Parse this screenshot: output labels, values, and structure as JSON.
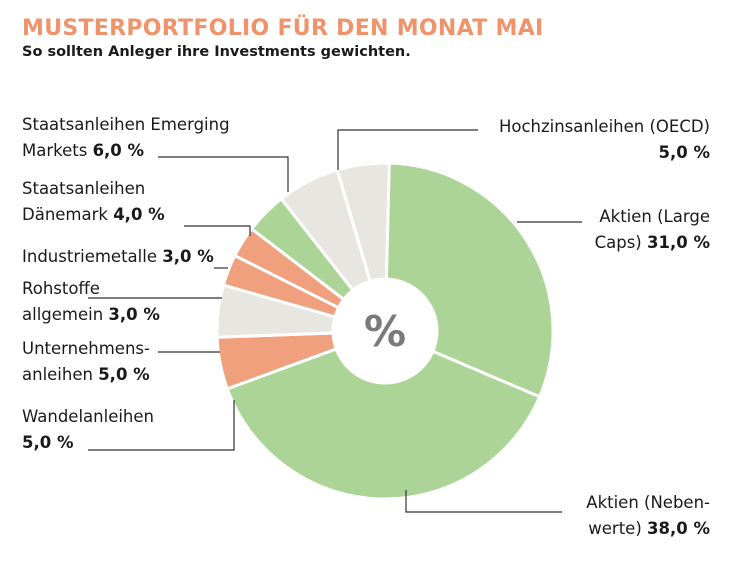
{
  "title": "MUSTERPORTFOLIO FÜR DEN MONAT MAI",
  "subtitle": "So sollten Anleger ihre Investments gewichten.",
  "center_label": "%",
  "colors": {
    "title": "#f0936a",
    "green": "#acd496",
    "orange": "#f0a07c",
    "gray": "#e8e6e0",
    "line": "#333333"
  },
  "chart_data": {
    "type": "pie",
    "title": "MUSTERPORTFOLIO FÜR DEN MONAT MAI",
    "subtitle": "So sollten Anleger ihre Investments gewichten.",
    "unit": "%",
    "slices": [
      {
        "name_lines": [
          "Aktien (Large",
          "Caps) "
        ],
        "value_text": "31,0 %",
        "value": 31.0,
        "color": "green"
      },
      {
        "name_lines": [
          "Aktien (Neben-",
          "werte) "
        ],
        "value_text": "38,0 %",
        "value": 38.0,
        "color": "green"
      },
      {
        "name_lines": [
          "Wandelanleihen",
          ""
        ],
        "value_text": "5,0 %",
        "value": 5.0,
        "color": "orange"
      },
      {
        "name_lines": [
          "Unternehmens-",
          "anleihen "
        ],
        "value_text": "5,0 %",
        "value": 5.0,
        "color": "gray"
      },
      {
        "name_lines": [
          "Rohstoffe",
          "allgemein "
        ],
        "value_text": "3,0 %",
        "value": 3.0,
        "color": "orange"
      },
      {
        "name_lines": [
          "Industriemetalle "
        ],
        "value_text": "3,0 %",
        "value": 3.0,
        "color": "orange"
      },
      {
        "name_lines": [
          "Staatsanleihen",
          "Dänemark "
        ],
        "value_text": "4,0 %",
        "value": 4.0,
        "color": "green"
      },
      {
        "name_lines": [
          "Staatsanleihen Emerging",
          "Markets "
        ],
        "value_text": "6,0 %",
        "value": 6.0,
        "color": "gray"
      },
      {
        "name_lines": [
          "Hochzinsanleihen (OECD)",
          ""
        ],
        "value_text": "5,0 %",
        "value": 5.0,
        "color": "gray"
      }
    ]
  }
}
